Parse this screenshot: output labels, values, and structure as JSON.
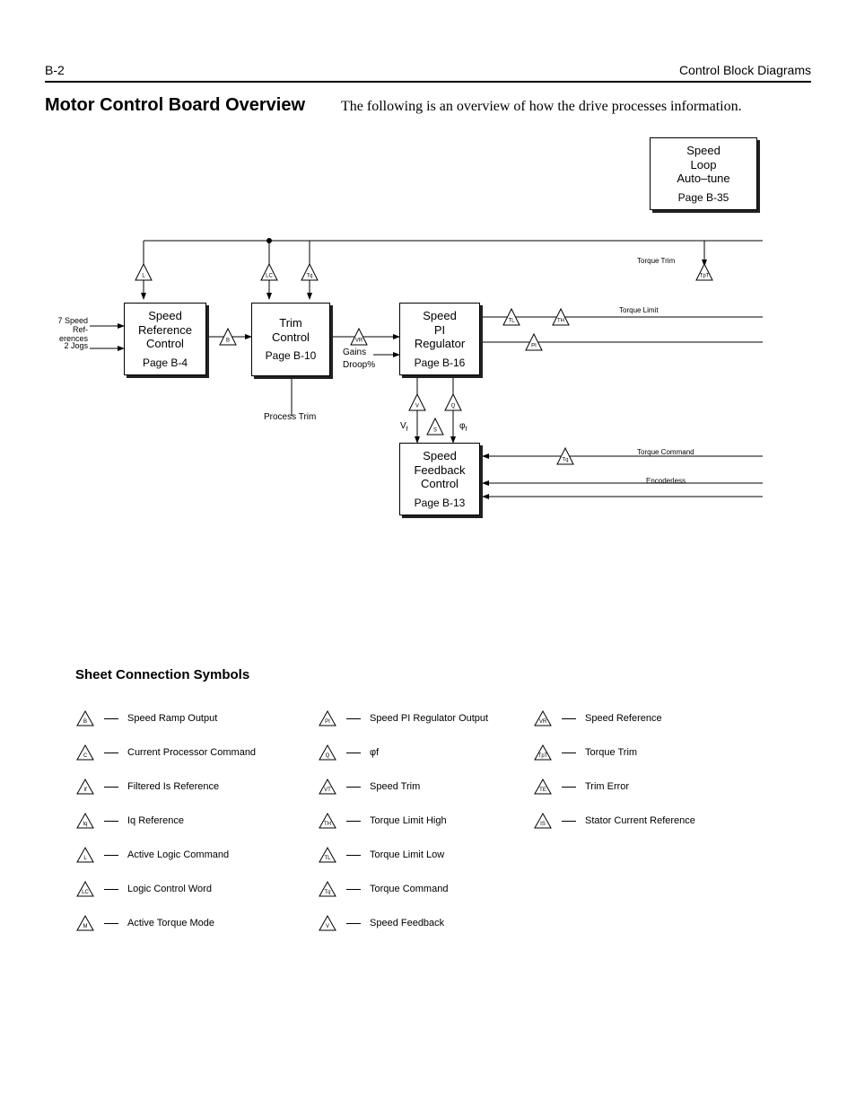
{
  "header": {
    "page_num": "B-2",
    "section": "Control Block Diagrams"
  },
  "title": "Motor Control Board Overview",
  "description": "The following is an overview of how the drive processes information.",
  "blocks": {
    "autotune": {
      "line1": "Speed",
      "line2": "Loop",
      "line3": "Auto–tune",
      "page": "Page B-35"
    },
    "speed_ref": {
      "line1": "Speed",
      "line2": "Reference",
      "line3": "Control",
      "page": "Page B-4"
    },
    "trim": {
      "line1": "Trim",
      "line2": "Control",
      "page": "Page B-10"
    },
    "pi_reg": {
      "line1": "Speed",
      "line2": "PI",
      "line3": "Regulator",
      "page": "Page B-16"
    },
    "feedback": {
      "line1": "Speed",
      "line2": "Feedback",
      "line3": "Control",
      "page": "Page B-13"
    }
  },
  "diag_labels": {
    "inputs1": "7 Speed Ref-",
    "inputs1b": "erences",
    "inputs2": "2  Jogs",
    "gains": "Gains",
    "droop": "Droop%",
    "process_trim": "Process Trim",
    "torque_trim": "Torque Trim",
    "torque_limit": "Torque Limit",
    "torque_command": "Torque Command",
    "encoderless": "Encoderless",
    "vf": "V",
    "phif": "φ"
  },
  "triangles": {
    "L": "L",
    "LC": "LC",
    "Tq": "Tq",
    "B": "B",
    "VR": "VR",
    "TL": "TL",
    "TH": "TH",
    "PI": "PI",
    "V": "V",
    "Q": "Q",
    "S": "S",
    "TpT": "TpT"
  },
  "symbols_title": "Sheet Connection Symbols",
  "symbols": {
    "col1": [
      {
        "code": "B",
        "label": "Speed Ramp Output"
      },
      {
        "code": "C",
        "label": "Current Processor Command"
      },
      {
        "code": "If",
        "label": "Filtered Is Reference"
      },
      {
        "code": "Iq",
        "label": "Iq Reference"
      },
      {
        "code": "L",
        "label": "Active Logic Command"
      },
      {
        "code": "LC",
        "label": "Logic Control Word"
      },
      {
        "code": "M",
        "label": "Active Torque Mode"
      }
    ],
    "col2": [
      {
        "code": "PI",
        "label": "Speed PI Regulator Output"
      },
      {
        "code": "Q",
        "label": "φf"
      },
      {
        "code": "VT",
        "label": "Speed Trim"
      },
      {
        "code": "TH",
        "label": "Torque Limit High"
      },
      {
        "code": "TL",
        "label": "Torque Limit Low"
      },
      {
        "code": "Tq",
        "label": "Torque Command"
      },
      {
        "code": "V",
        "label": "Speed Feedback"
      }
    ],
    "col3": [
      {
        "code": "VR",
        "label": "Speed Reference"
      },
      {
        "code": "TpT",
        "label": "Torque Trim"
      },
      {
        "code": "TE",
        "label": "Trim Error"
      },
      {
        "code": "IS",
        "label": "Stator Current Reference"
      }
    ]
  }
}
